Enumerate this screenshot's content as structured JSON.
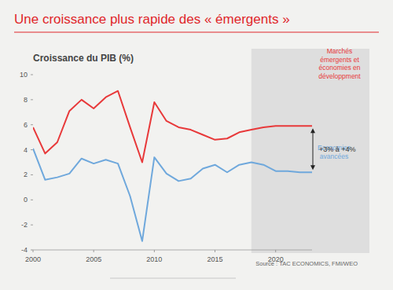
{
  "chart_data": {
    "type": "line",
    "title": "Une croissance plus rapide des « émergents »",
    "y_label": "Croissance du PIB (%)",
    "x": [
      2000,
      2001,
      2002,
      2003,
      2004,
      2005,
      2006,
      2007,
      2008,
      2009,
      2010,
      2011,
      2012,
      2013,
      2014,
      2015,
      2016,
      2017,
      2018,
      2019,
      2020,
      2021,
      2022,
      2023
    ],
    "series": [
      {
        "name": "Marchés émergents et économies en développment",
        "color": "#e8393a",
        "values": [
          5.8,
          3.7,
          4.6,
          7.1,
          8.0,
          7.3,
          8.2,
          8.7,
          5.8,
          3.0,
          7.8,
          6.3,
          5.8,
          5.6,
          5.2,
          4.8,
          4.9,
          5.4,
          5.6,
          5.8,
          5.9,
          5.9,
          5.9,
          5.9
        ]
      },
      {
        "name": "Economies avancées",
        "color": "#6fa8dc",
        "values": [
          4.1,
          1.6,
          1.8,
          2.1,
          3.3,
          2.9,
          3.2,
          2.9,
          0.3,
          -3.3,
          3.4,
          2.1,
          1.5,
          1.7,
          2.5,
          2.8,
          2.2,
          2.8,
          3.0,
          2.8,
          2.3,
          2.3,
          2.2,
          2.2
        ]
      }
    ],
    "xlim": [
      2000,
      2023
    ],
    "xticks": [
      2000,
      2005,
      2010,
      2015,
      2020
    ],
    "ylim": [
      -4,
      10
    ],
    "yticks": [
      -4,
      -2,
      0,
      2,
      4,
      6,
      8,
      10
    ],
    "forecast_from": 2018,
    "annotation": "+3% à +4%",
    "source": "Source : TAC ECONOMICS, FMI/WEO",
    "grid": false
  }
}
